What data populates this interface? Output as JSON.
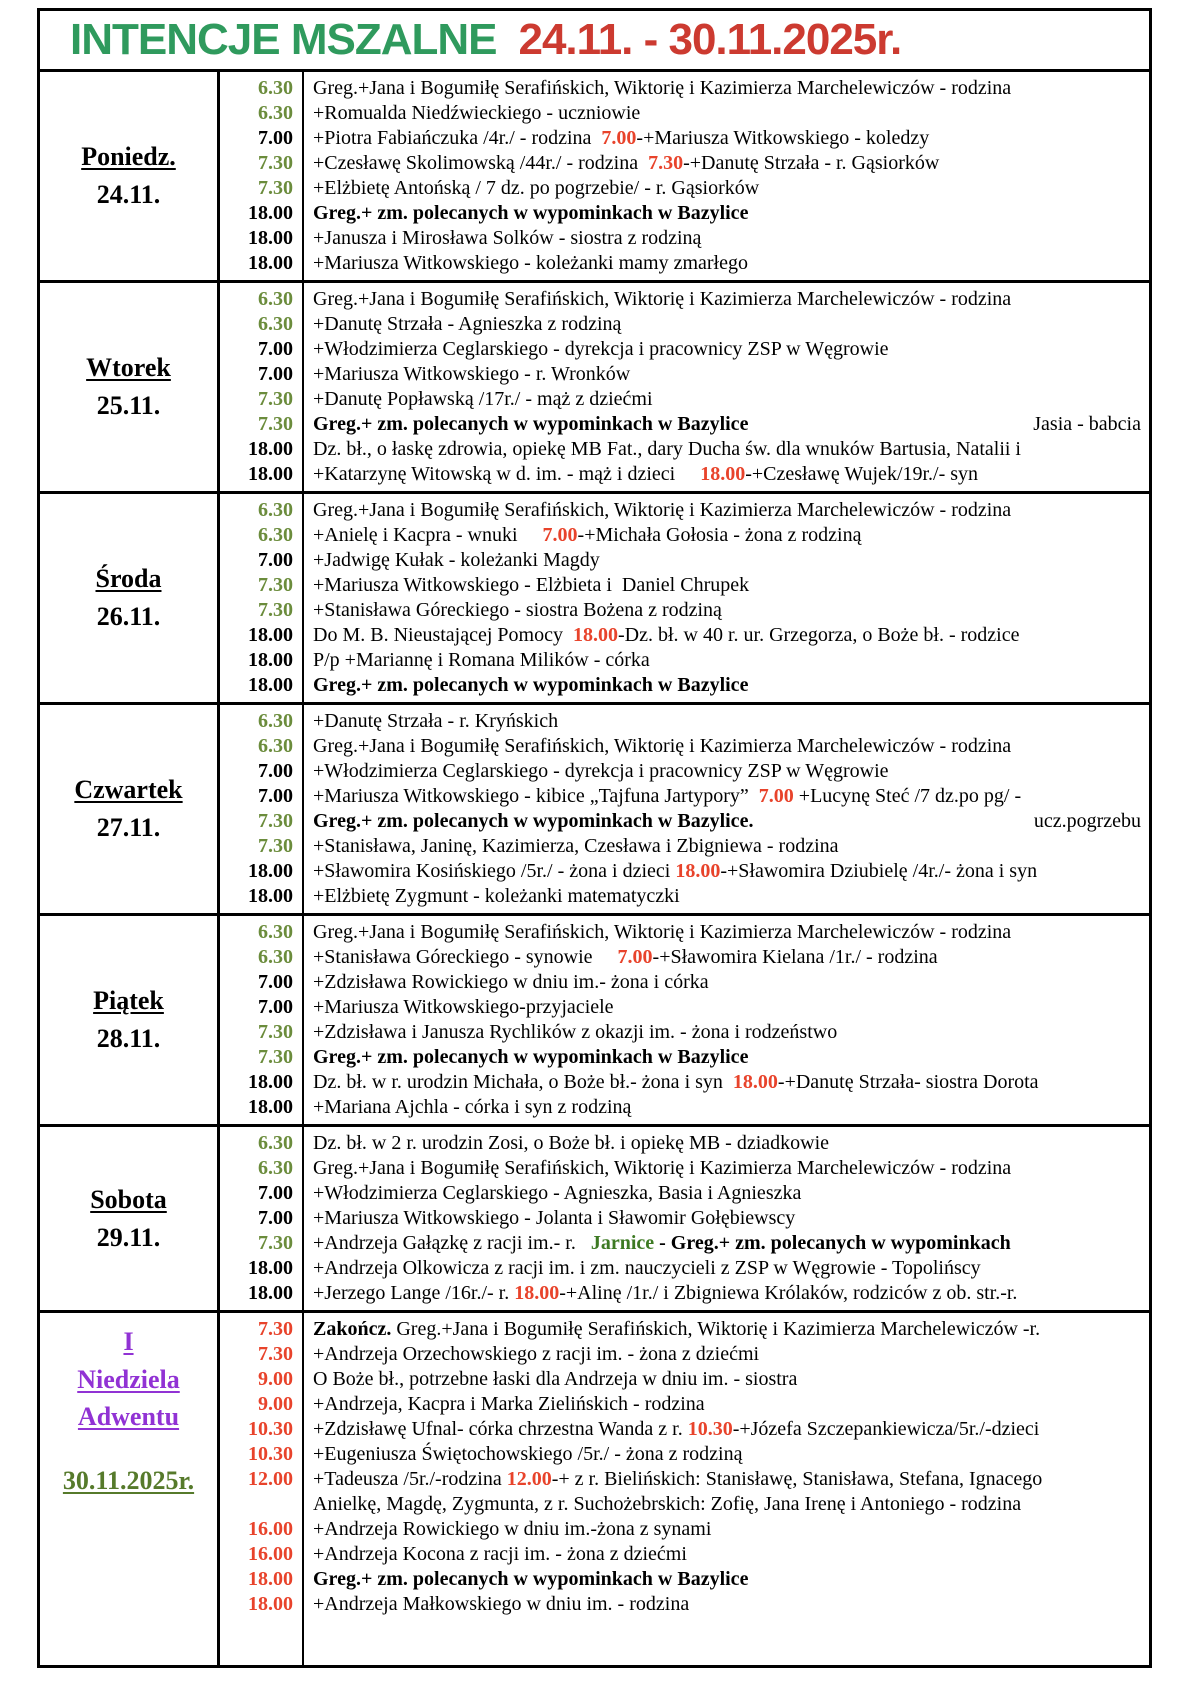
{
  "title": {
    "main": "INTENCJE MSZALNE",
    "dates": "24.11. - 30.11.2025r."
  },
  "colors": {
    "title_green": "#2F9A5D",
    "title_red": "#CC3A30",
    "time_green": "#6B8C3C",
    "accent_red": "#E8432B",
    "sunday_purple": "#9132D4",
    "sunday_date_green": "#567A2B",
    "jarnice_green": "#3D7A23"
  },
  "days": [
    {
      "id": "poniedz",
      "label": [
        {
          "t": "Poniedz.",
          "u": true
        },
        {
          "t": "24.11.",
          "u": false
        }
      ],
      "entries": [
        {
          "tm": "6.30",
          "tc": "g",
          "segs": [
            {
              "st": "n",
              "t": "Greg.+Jana i Bogumiłę Serafińskich, Wiktorię i Kazimierza Marchelewiczów - rodzina"
            }
          ]
        },
        {
          "tm": "6.30",
          "tc": "g",
          "segs": [
            {
              "st": "n",
              "t": "+Romualda Niedźwieckiego - uczniowie"
            }
          ]
        },
        {
          "tm": "7.00",
          "tc": "k",
          "segs": [
            {
              "st": "n",
              "t": "+Piotra Fabiańczuka /4r./ - rodzina  "
            },
            {
              "st": "r",
              "t": "7.00"
            },
            {
              "st": "n",
              "t": "-+Mariusza Witkowskiego - koledzy"
            }
          ]
        },
        {
          "tm": "7.30",
          "tc": "g",
          "segs": [
            {
              "st": "n",
              "t": "+Czesławę Skolimowską /44r./ - rodzina  "
            },
            {
              "st": "r",
              "t": "7.30"
            },
            {
              "st": "n",
              "t": "-+Danutę Strzała - r. Gąsiorków"
            }
          ]
        },
        {
          "tm": "7.30",
          "tc": "g",
          "segs": [
            {
              "st": "n",
              "t": "+Elżbietę Antońską / 7 dz. po pogrzebie/ - r. Gąsiorków"
            }
          ]
        },
        {
          "tm": "18.00",
          "tc": "k",
          "segs": [
            {
              "st": "b",
              "t": "Greg.+ zm. polecanych w wypominkach w Bazylice"
            }
          ]
        },
        {
          "tm": "18.00",
          "tc": "k",
          "segs": [
            {
              "st": "n",
              "t": "+Janusza i Mirosława Solków - siostra z rodziną"
            }
          ]
        },
        {
          "tm": "18.00",
          "tc": "k",
          "segs": [
            {
              "st": "n",
              "t": "+Mariusza Witkowskiego - koleżanki mamy zmarłego"
            }
          ]
        }
      ]
    },
    {
      "id": "wtorek",
      "label": [
        {
          "t": "Wtorek",
          "u": true
        },
        {
          "t": "25.11.",
          "u": false
        }
      ],
      "entries": [
        {
          "tm": "6.30",
          "tc": "g",
          "segs": [
            {
              "st": "n",
              "t": "Greg.+Jana i Bogumiłę Serafińskich, Wiktorię i Kazimierza Marchelewiczów - rodzina"
            }
          ]
        },
        {
          "tm": "6.30",
          "tc": "g",
          "segs": [
            {
              "st": "n",
              "t": "+Danutę Strzała - Agnieszka z rodziną"
            }
          ]
        },
        {
          "tm": "7.00",
          "tc": "k",
          "segs": [
            {
              "st": "n",
              "t": "+Włodzimierza Ceglarskiego - dyrekcja i pracownicy ZSP w Węgrowie"
            }
          ]
        },
        {
          "tm": "7.00",
          "tc": "k",
          "segs": [
            {
              "st": "n",
              "t": "+Mariusza Witkowskiego - r. Wronków"
            }
          ]
        },
        {
          "tm": "7.30",
          "tc": "g",
          "segs": [
            {
              "st": "n",
              "t": "+Danutę Popławską /17r./ - mąż z dziećmi"
            }
          ]
        },
        {
          "tm": "7.30",
          "tc": "g",
          "segs": [
            {
              "st": "b",
              "t": "Greg.+ zm. polecanych w wypominkach w Bazylice"
            }
          ],
          "right": "Jasia - babcia"
        },
        {
          "tm": "18.00",
          "tc": "k",
          "segs": [
            {
              "st": "n",
              "t": "Dz. bł., o łaskę zdrowia, opiekę MB Fat., dary Ducha św. dla wnuków Bartusia, Natalii i"
            }
          ]
        },
        {
          "tm": "18.00",
          "tc": "k",
          "segs": [
            {
              "st": "n",
              "t": "+Katarzynę Witowską w d. im. - mąż i dzieci     "
            },
            {
              "st": "r",
              "t": "18.00"
            },
            {
              "st": "n",
              "t": "-+Czesławę Wujek/19r./- syn"
            }
          ]
        }
      ]
    },
    {
      "id": "sroda",
      "label": [
        {
          "t": "Środa",
          "u": true
        },
        {
          "t": "26.11.",
          "u": false
        }
      ],
      "entries": [
        {
          "tm": "6.30",
          "tc": "g",
          "segs": [
            {
              "st": "n",
              "t": "Greg.+Jana i Bogumiłę Serafińskich, Wiktorię i Kazimierza Marchelewiczów - rodzina"
            }
          ]
        },
        {
          "tm": "6.30",
          "tc": "g",
          "segs": [
            {
              "st": "n",
              "t": "+Anielę i Kacpra - wnuki     "
            },
            {
              "st": "r",
              "t": "7.00"
            },
            {
              "st": "n",
              "t": "-+Michała Gołosia - żona z rodziną"
            }
          ]
        },
        {
          "tm": "7.00",
          "tc": "k",
          "segs": [
            {
              "st": "n",
              "t": "+Jadwigę Kułak - koleżanki Magdy"
            }
          ]
        },
        {
          "tm": "7.30",
          "tc": "g",
          "segs": [
            {
              "st": "n",
              "t": "+Mariusza Witkowskiego - Elżbieta i  Daniel Chrupek"
            }
          ]
        },
        {
          "tm": "7.30",
          "tc": "g",
          "segs": [
            {
              "st": "n",
              "t": "+Stanisława Góreckiego - siostra Bożena z rodziną"
            }
          ]
        },
        {
          "tm": "18.00",
          "tc": "k",
          "segs": [
            {
              "st": "n",
              "t": "Do M. B. Nieustającej Pomocy  "
            },
            {
              "st": "r",
              "t": "18.00"
            },
            {
              "st": "n",
              "t": "-Dz. bł. w 40 r. ur. Grzegorza, o Boże bł. - rodzice"
            }
          ]
        },
        {
          "tm": "18.00",
          "tc": "k",
          "segs": [
            {
              "st": "n",
              "t": "P/p +Mariannę i Romana Milików - córka"
            }
          ]
        },
        {
          "tm": "18.00",
          "tc": "k",
          "segs": [
            {
              "st": "b",
              "t": "Greg.+ zm. polecanych w wypominkach w Bazylice"
            }
          ]
        }
      ]
    },
    {
      "id": "czwartek",
      "label": [
        {
          "t": "Czwartek",
          "u": true
        },
        {
          "t": "27.11.",
          "u": false
        }
      ],
      "entries": [
        {
          "tm": "6.30",
          "tc": "g",
          "segs": [
            {
              "st": "n",
              "t": "+Danutę Strzała - r. Kryńskich"
            }
          ]
        },
        {
          "tm": "6.30",
          "tc": "g",
          "segs": [
            {
              "st": "n",
              "t": "Greg.+Jana i Bogumiłę Serafińskich, Wiktorię i Kazimierza Marchelewiczów - rodzina"
            }
          ]
        },
        {
          "tm": "7.00",
          "tc": "k",
          "segs": [
            {
              "st": "n",
              "t": "+Włodzimierza Ceglarskiego - dyrekcja i pracownicy ZSP w Węgrowie"
            }
          ]
        },
        {
          "tm": "7.00",
          "tc": "k",
          "segs": [
            {
              "st": "n",
              "t": "+Mariusza Witkowskiego - kibice „Tajfuna Jartypory”  "
            },
            {
              "st": "r",
              "t": "7.00"
            },
            {
              "st": "n",
              "t": " +Lucynę Steć /7 dz.po pg/ -"
            }
          ]
        },
        {
          "tm": "7.30",
          "tc": "g",
          "segs": [
            {
              "st": "b",
              "t": "Greg.+ zm. polecanych w wypominkach w Bazylice."
            }
          ],
          "right": "ucz.pogrzebu"
        },
        {
          "tm": "7.30",
          "tc": "g",
          "segs": [
            {
              "st": "n",
              "t": "+Stanisława, Janinę, Kazimierza, Czesława i Zbigniewa - rodzina"
            }
          ]
        },
        {
          "tm": "18.00",
          "tc": "k",
          "segs": [
            {
              "st": "n",
              "t": "+Sławomira Kosińskiego /5r./ - żona i dzieci "
            },
            {
              "st": "r",
              "t": "18.00"
            },
            {
              "st": "n",
              "t": "-+Sławomira Dziubielę /4r./- żona i syn"
            }
          ]
        },
        {
          "tm": "18.00",
          "tc": "k",
          "segs": [
            {
              "st": "n",
              "t": "+Elżbietę Zygmunt - koleżanki matematyczki"
            }
          ]
        }
      ]
    },
    {
      "id": "piatek",
      "label": [
        {
          "t": "Piątek",
          "u": true
        },
        {
          "t": "28.11.",
          "u": false
        }
      ],
      "entries": [
        {
          "tm": "6.30",
          "tc": "g",
          "segs": [
            {
              "st": "n",
              "t": "Greg.+Jana i Bogumiłę Serafińskich, Wiktorię i Kazimierza Marchelewiczów - rodzina"
            }
          ]
        },
        {
          "tm": "6.30",
          "tc": "g",
          "segs": [
            {
              "st": "n",
              "t": "+Stanisława Góreckiego - synowie     "
            },
            {
              "st": "r",
              "t": "7.00"
            },
            {
              "st": "n",
              "t": "-+Sławomira Kielana /1r./ - rodzina"
            }
          ]
        },
        {
          "tm": "7.00",
          "tc": "k",
          "segs": [
            {
              "st": "n",
              "t": "+Zdzisława Rowickiego w dniu im.- żona i córka"
            }
          ]
        },
        {
          "tm": "7.00",
          "tc": "k",
          "segs": [
            {
              "st": "n",
              "t": "+Mariusza Witkowskiego-przyjaciele"
            }
          ]
        },
        {
          "tm": "7.30",
          "tc": "g",
          "segs": [
            {
              "st": "n",
              "t": "+Zdzisława i Janusza Rychlików z okazji im. - żona i rodzeństwo"
            }
          ]
        },
        {
          "tm": "7.30",
          "tc": "g",
          "segs": [
            {
              "st": "b",
              "t": "Greg.+ zm. polecanych w wypominkach w Bazylice"
            }
          ]
        },
        {
          "tm": "18.00",
          "tc": "k",
          "segs": [
            {
              "st": "n",
              "t": "Dz. bł. w r. urodzin Michała, o Boże bł.- żona i syn  "
            },
            {
              "st": "r",
              "t": "18.00"
            },
            {
              "st": "n",
              "t": "-+Danutę Strzała- siostra Dorota"
            }
          ]
        },
        {
          "tm": "18.00",
          "tc": "k",
          "segs": [
            {
              "st": "n",
              "t": "+Mariana Ajchla - córka i syn z rodziną"
            }
          ]
        }
      ]
    },
    {
      "id": "sobota",
      "label": [
        {
          "t": "Sobota",
          "u": true
        },
        {
          "t": "29.11.",
          "u": false
        }
      ],
      "entries": [
        {
          "tm": "6.30",
          "tc": "g",
          "segs": [
            {
              "st": "n",
              "t": "Dz. bł. w 2 r. urodzin Zosi, o Boże bł. i opiekę MB - dziadkowie"
            }
          ]
        },
        {
          "tm": "6.30",
          "tc": "g",
          "segs": [
            {
              "st": "n",
              "t": "Greg.+Jana i Bogumiłę Serafińskich, Wiktorię i Kazimierza Marchelewiczów - rodzina"
            }
          ]
        },
        {
          "tm": "7.00",
          "tc": "k",
          "segs": [
            {
              "st": "n",
              "t": "+Włodzimierza Ceglarskiego - Agnieszka, Basia i Agnieszka"
            }
          ]
        },
        {
          "tm": "7.00",
          "tc": "k",
          "segs": [
            {
              "st": "n",
              "t": "+Mariusza Witkowskiego - Jolanta i Sławomir Gołębiewscy"
            }
          ]
        },
        {
          "tm": "7.30",
          "tc": "g",
          "segs": [
            {
              "st": "n",
              "t": "+Andrzeja Gałązkę z racji im.- r.   "
            },
            {
              "st": "gb",
              "t": "Jarnice"
            },
            {
              "st": "b",
              "t": " - Greg.+ zm. polecanych w wypominkach"
            }
          ]
        },
        {
          "tm": "18.00",
          "tc": "k",
          "segs": [
            {
              "st": "n",
              "t": "+Andrzeja Olkowicza z racji im. i zm. nauczycieli z ZSP w Węgrowie - Topolińscy"
            }
          ]
        },
        {
          "tm": "18.00",
          "tc": "k",
          "segs": [
            {
              "st": "n",
              "t": "+Jerzego Lange /16r./- r. "
            },
            {
              "st": "r",
              "t": "18.00"
            },
            {
              "st": "n",
              "t": "-+Alinę /1r./ i Zbigniewa Królaków, rodziców z ob. str.-r."
            }
          ]
        }
      ]
    },
    {
      "id": "niedziela",
      "align": "top",
      "sun": true,
      "label": [
        {
          "t": "I",
          "u": true,
          "c": "purple"
        },
        {
          "t": "Niedziela",
          "u": true,
          "c": "purple"
        },
        {
          "t": "Adwentu",
          "u": true,
          "c": "purple"
        },
        {
          "t": "",
          "u": false
        },
        {
          "t": "30.11.2025r.",
          "u": true,
          "c": "olive"
        }
      ],
      "entries": [
        {
          "tm": "7.30",
          "tc": "r",
          "segs": [
            {
              "st": "b",
              "t": "Zakończ."
            },
            {
              "st": "n",
              "t": " Greg.+Jana i Bogumiłę Serafińskich, Wiktorię i Kazimierza Marchelewiczów -r."
            }
          ]
        },
        {
          "tm": "7.30",
          "tc": "r",
          "segs": [
            {
              "st": "n",
              "t": "+Andrzeja Orzechowskiego z racji im. - żona z dziećmi"
            }
          ]
        },
        {
          "tm": "9.00",
          "tc": "r",
          "segs": [
            {
              "st": "n",
              "t": "O Boże bł., potrzebne łaski dla Andrzeja w dniu im. - siostra"
            }
          ]
        },
        {
          "tm": "9.00",
          "tc": "r",
          "segs": [
            {
              "st": "n",
              "t": "+Andrzeja, Kacpra i Marka Zielińskich - rodzina"
            }
          ]
        },
        {
          "tm": "10.30",
          "tc": "r",
          "segs": [
            {
              "st": "n",
              "t": "+Zdzisławę Ufnal- córka chrzestna Wanda z r. "
            },
            {
              "st": "r",
              "t": "10.30"
            },
            {
              "st": "n",
              "t": "-+Józefa Szczepankiewicza/5r./-dzieci"
            }
          ]
        },
        {
          "tm": "10.30",
          "tc": "r",
          "segs": [
            {
              "st": "n",
              "t": "+Eugeniusza Świętochowskiego /5r./ - żona z rodziną"
            }
          ]
        },
        {
          "tm": "12.00",
          "tc": "r",
          "segs": [
            {
              "st": "n",
              "t": "+Tadeusza /5r./-rodzina "
            },
            {
              "st": "r",
              "t": "12.00"
            },
            {
              "st": "n",
              "t": "-+ z r. Bielińskich: Stanisławę, Stanisława, Stefana, Ignacego"
            }
          ]
        },
        {
          "tm": "",
          "tc": "r",
          "segs": [
            {
              "st": "n",
              "t": "Anielkę, Magdę, Zygmunta, z r. Suchożebrskich: Zofię, Jana Irenę i Antoniego - rodzina"
            }
          ]
        },
        {
          "tm": "16.00",
          "tc": "r",
          "segs": [
            {
              "st": "n",
              "t": "+Andrzeja Rowickiego w dniu im.-żona z synami"
            }
          ]
        },
        {
          "tm": "16.00",
          "tc": "r",
          "segs": [
            {
              "st": "n",
              "t": "+Andrzeja Kocona z racji im. - żona z dziećmi"
            }
          ]
        },
        {
          "tm": "18.00",
          "tc": "r",
          "segs": [
            {
              "st": "b",
              "t": "Greg.+ zm. polecanych w wypominkach w Bazylice"
            }
          ]
        },
        {
          "tm": "18.00",
          "tc": "r",
          "segs": [
            {
              "st": "n",
              "t": "+Andrzeja Małkowskiego w dniu im. - rodzina"
            }
          ]
        }
      ]
    }
  ]
}
